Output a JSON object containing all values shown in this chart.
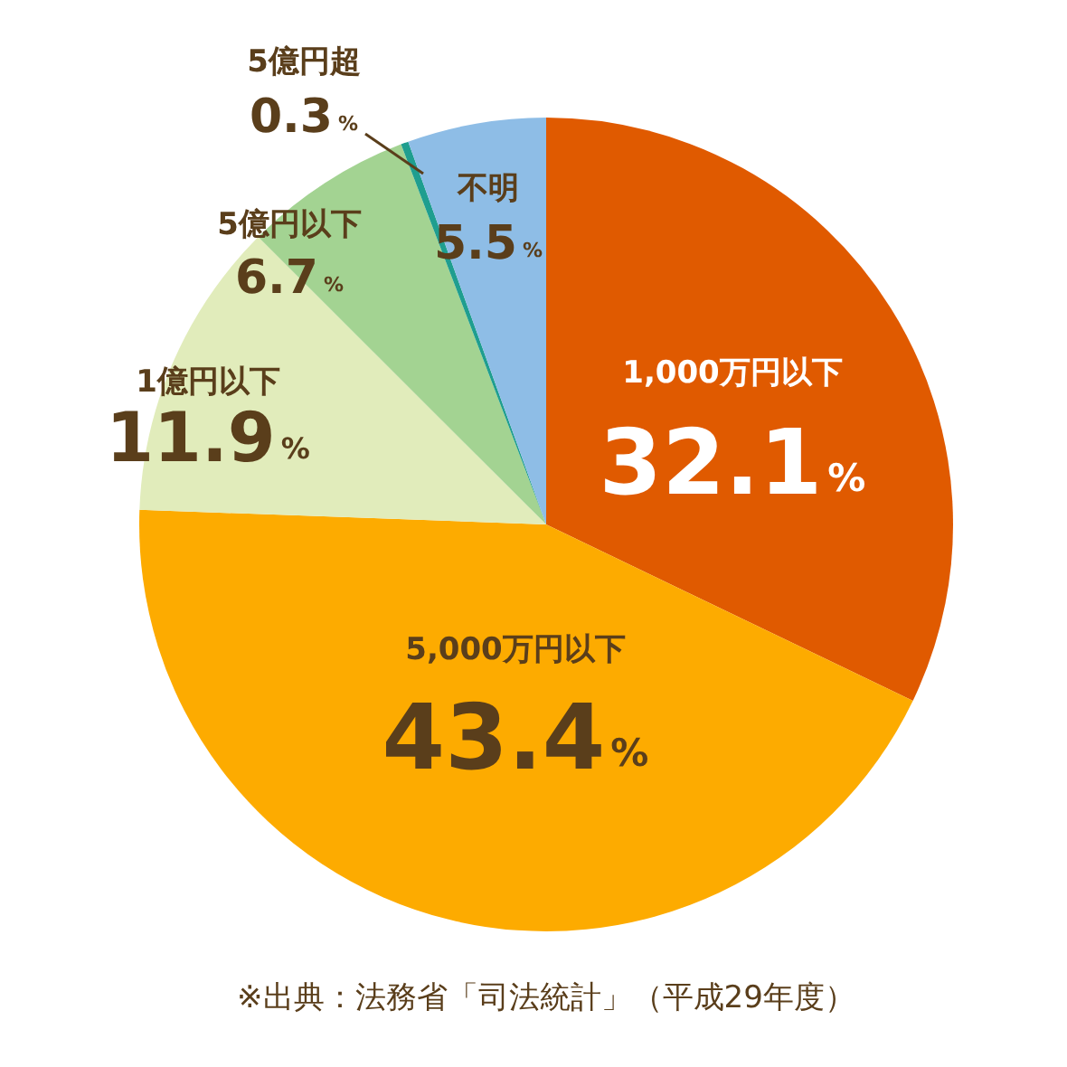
{
  "chart_data": {
    "type": "pie",
    "categories": [
      "1,000万円以下",
      "5,000万円以下",
      "1億円以下",
      "5億円以下",
      "5億円超",
      "不明"
    ],
    "values": [
      32.1,
      43.4,
      11.9,
      6.7,
      0.3,
      5.5
    ],
    "value_labels": [
      "32.1%",
      "43.4%",
      "11.9%",
      "6.7%",
      "0.3%",
      "5.5%"
    ],
    "colors": [
      "#e05a00",
      "#fdab00",
      "#e1ecbb",
      "#a3d392",
      "#1f9e8f",
      "#8ebde6"
    ],
    "legend": false,
    "annotations": [
      "※出典：法務省「司法統計」（平成29年度）"
    ]
  }
}
